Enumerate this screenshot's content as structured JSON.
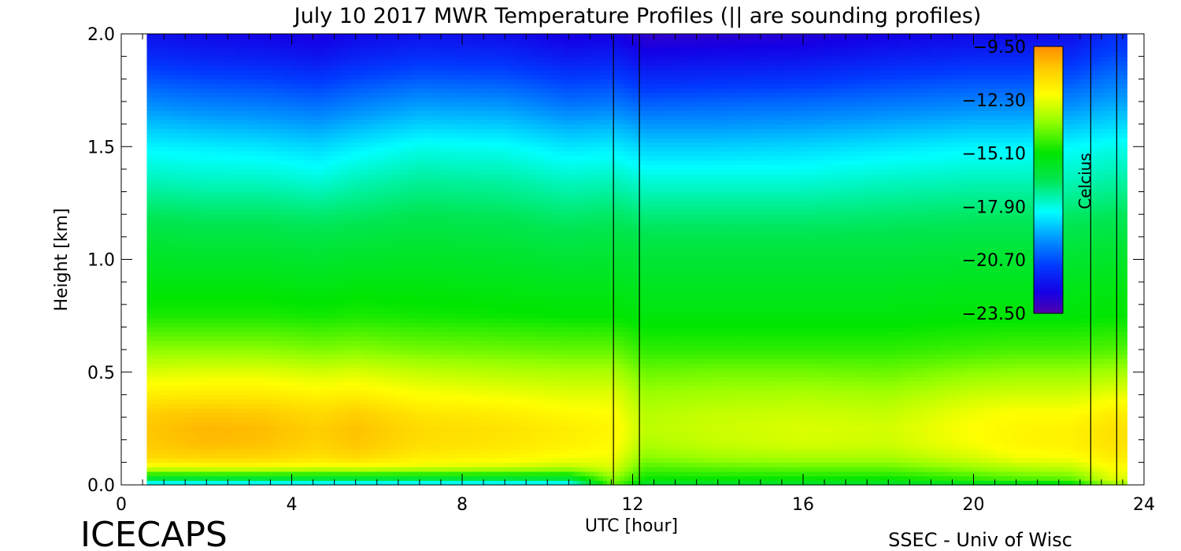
{
  "chart_data": {
    "type": "heatmap",
    "title": "July 10 2017 MWR Temperature Profiles (|| are sounding profiles)",
    "xlabel": "UTC [hour]",
    "ylabel": "Height [km]",
    "xlim": [
      0,
      24
    ],
    "ylim": [
      0,
      2
    ],
    "x_ticks": [
      "0",
      "4",
      "8",
      "12",
      "16",
      "20",
      "24"
    ],
    "y_ticks": [
      "0.0",
      "0.5",
      "1.0",
      "1.5",
      "2.0"
    ],
    "colorbar": {
      "label": "Celcius",
      "range": [
        -23.5,
        -9.5
      ],
      "ticks": [
        "-9.50",
        "-12.30",
        "-15.10",
        "-17.90",
        "-20.70",
        "-23.50"
      ],
      "placement": "upper-right inside plot"
    },
    "data_time_range": [
      0.6,
      23.6
    ],
    "sounding_times": [
      11.55,
      22.75
    ],
    "heights_km": [
      0,
      0.03,
      0.08,
      0.12,
      0.18,
      0.25,
      0.32,
      0.4,
      0.5,
      0.6,
      0.75,
      0.9,
      1.05,
      1.2,
      1.35,
      1.5,
      1.6,
      1.7,
      1.8,
      1.9,
      2.0
    ],
    "profiles": [
      {
        "time": 0.6,
        "temps": [
          -19,
          -16,
          -12.2,
          -11.1,
          -10.7,
          -10.6,
          -10.8,
          -11.6,
          -12.5,
          -13.5,
          -14.8,
          -15.4,
          -15.9,
          -16.6,
          -17.5,
          -18.3,
          -19.0,
          -19.8,
          -20.6,
          -21.4,
          -22.0
        ]
      },
      {
        "time": 2.0,
        "temps": [
          -19,
          -16,
          -12.1,
          -11.0,
          -10.4,
          -10.3,
          -10.6,
          -11.5,
          -12.4,
          -13.5,
          -14.8,
          -15.4,
          -16.0,
          -16.7,
          -17.6,
          -18.4,
          -19.2,
          -20.0,
          -20.8,
          -21.6,
          -22.2
        ]
      },
      {
        "time": 3.3,
        "temps": [
          -19,
          -16,
          -12.1,
          -11.0,
          -10.5,
          -10.4,
          -10.7,
          -11.5,
          -12.4,
          -13.5,
          -14.8,
          -15.4,
          -16.0,
          -16.7,
          -17.6,
          -18.5,
          -19.3,
          -20.1,
          -20.9,
          -21.7,
          -22.3
        ]
      },
      {
        "time": 4.6,
        "temps": [
          -19,
          -16,
          -12.3,
          -11.3,
          -10.9,
          -10.8,
          -11.1,
          -11.7,
          -12.6,
          -13.7,
          -14.9,
          -15.5,
          -16.1,
          -16.8,
          -17.8,
          -18.7,
          -19.5,
          -20.3,
          -21.1,
          -21.9,
          -22.5
        ]
      },
      {
        "time": 5.5,
        "temps": [
          -19,
          -16,
          -12.2,
          -11.1,
          -10.6,
          -10.5,
          -10.8,
          -11.6,
          -12.5,
          -13.6,
          -14.8,
          -15.4,
          -16.0,
          -16.7,
          -17.5,
          -18.4,
          -19.2,
          -20.0,
          -20.8,
          -21.6,
          -22.2
        ]
      },
      {
        "time": 7.0,
        "temps": [
          -19,
          -16,
          -12.4,
          -11.6,
          -11.2,
          -11.1,
          -11.4,
          -12.0,
          -12.8,
          -13.8,
          -14.9,
          -15.4,
          -15.9,
          -16.5,
          -17.2,
          -18.0,
          -18.8,
          -19.6,
          -20.5,
          -21.3,
          -22.0
        ]
      },
      {
        "time": 9.0,
        "temps": [
          -19,
          -16,
          -12.6,
          -11.8,
          -11.4,
          -11.3,
          -11.6,
          -12.2,
          -13.0,
          -13.9,
          -15.0,
          -15.5,
          -16.0,
          -16.6,
          -17.3,
          -18.1,
          -18.9,
          -19.7,
          -20.6,
          -21.4,
          -22.1
        ]
      },
      {
        "time": 10.5,
        "temps": [
          -19,
          -16,
          -12.9,
          -12.1,
          -11.7,
          -11.6,
          -11.9,
          -12.4,
          -13.1,
          -14.0,
          -15.1,
          -15.6,
          -16.2,
          -16.8,
          -17.6,
          -18.5,
          -19.3,
          -20.2,
          -21.0,
          -21.8,
          -22.5
        ]
      },
      {
        "time": 11.55,
        "temps": [
          -14,
          -13.5,
          -12.5,
          -12.2,
          -11.9,
          -11.8,
          -12.0,
          -12.4,
          -13.1,
          -14.0,
          -15.1,
          -15.6,
          -16.1,
          -16.7,
          -17.5,
          -18.4,
          -19.2,
          -20.1,
          -20.9,
          -21.7,
          -22.4
        ]
      },
      {
        "time": 12.3,
        "temps": [
          -16,
          -15,
          -14.2,
          -13.6,
          -13.1,
          -12.9,
          -13.0,
          -13.3,
          -13.9,
          -14.6,
          -15.3,
          -15.7,
          -16.2,
          -16.9,
          -17.8,
          -18.8,
          -19.6,
          -20.5,
          -21.4,
          -22.2,
          -22.9
        ]
      },
      {
        "time": 14.0,
        "temps": [
          -16,
          -15,
          -14.0,
          -13.3,
          -12.8,
          -12.7,
          -12.8,
          -13.2,
          -13.8,
          -14.6,
          -15.3,
          -15.7,
          -16.2,
          -16.9,
          -17.8,
          -18.8,
          -19.6,
          -20.4,
          -21.3,
          -22.1,
          -22.8
        ]
      },
      {
        "time": 16.0,
        "temps": [
          -16,
          -15,
          -13.9,
          -13.2,
          -12.6,
          -12.5,
          -12.7,
          -13.1,
          -13.8,
          -14.6,
          -15.3,
          -15.7,
          -16.2,
          -16.9,
          -17.8,
          -18.7,
          -19.5,
          -20.3,
          -21.2,
          -22.0,
          -22.7
        ]
      },
      {
        "time": 18.0,
        "temps": [
          -16,
          -15,
          -13.9,
          -13.2,
          -12.7,
          -12.6,
          -12.8,
          -13.2,
          -13.9,
          -14.6,
          -15.3,
          -15.7,
          -16.2,
          -16.8,
          -17.6,
          -18.5,
          -19.3,
          -20.1,
          -20.9,
          -21.7,
          -22.4
        ]
      },
      {
        "time": 20.0,
        "temps": [
          -16,
          -14.5,
          -13.3,
          -12.6,
          -12.1,
          -12.0,
          -12.2,
          -12.7,
          -13.5,
          -14.4,
          -15.2,
          -15.6,
          -16.1,
          -16.7,
          -17.5,
          -18.3,
          -19.1,
          -19.9,
          -20.7,
          -21.5,
          -22.2
        ]
      },
      {
        "time": 21.0,
        "temps": [
          -16,
          -14.2,
          -13.0,
          -12.2,
          -11.8,
          -11.8,
          -12.0,
          -12.6,
          -13.4,
          -14.3,
          -15.2,
          -15.6,
          -16.1,
          -16.7,
          -17.5,
          -18.3,
          -19.1,
          -19.9,
          -20.7,
          -21.5,
          -22.2
        ]
      },
      {
        "time": 22.3,
        "temps": [
          -15.5,
          -14,
          -12.8,
          -12.1,
          -11.7,
          -11.7,
          -12.0,
          -12.6,
          -13.4,
          -14.3,
          -15.2,
          -15.6,
          -16.1,
          -16.7,
          -17.5,
          -18.2,
          -19.0,
          -19.8,
          -20.6,
          -21.4,
          -22.1
        ]
      },
      {
        "time": 23.2,
        "temps": [
          -13.5,
          -12.5,
          -12.0,
          -11.6,
          -11.3,
          -11.3,
          -11.6,
          -12.3,
          -13.2,
          -14.2,
          -15.1,
          -15.5,
          -16.0,
          -16.6,
          -17.3,
          -18.0,
          -18.7,
          -19.4,
          -20.1,
          -20.8,
          -21.4
        ]
      },
      {
        "time": 23.6,
        "temps": [
          -13.5,
          -12.5,
          -12.0,
          -11.6,
          -11.3,
          -11.3,
          -11.6,
          -12.3,
          -13.2,
          -14.2,
          -15.1,
          -15.5,
          -16.0,
          -16.6,
          -17.3,
          -18.0,
          -18.7,
          -19.4,
          -20.1,
          -20.8,
          -21.4
        ]
      }
    ]
  },
  "footer": {
    "left": "ICECAPS",
    "right": "SSEC - Univ of Wisc"
  }
}
